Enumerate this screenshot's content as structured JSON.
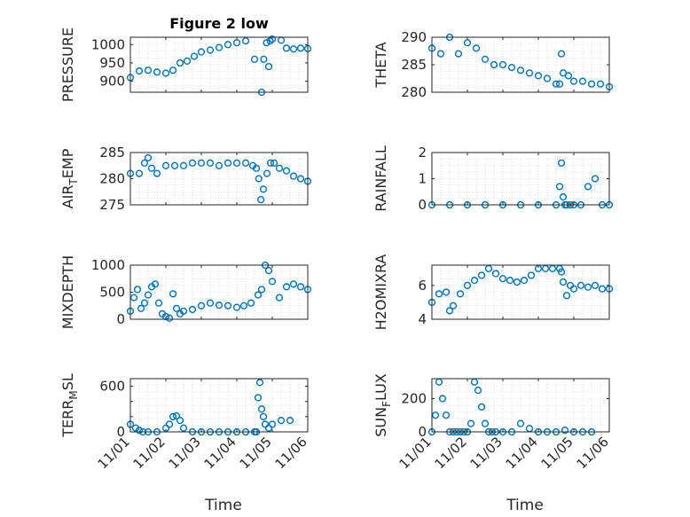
{
  "colors": {
    "marker": "#0072BD",
    "axis": "#262626",
    "grid": "#cfcfcf"
  },
  "chart_data": [
    {
      "type": "scatter",
      "title": "Figure 2 low",
      "ylabel": "PRESSURE",
      "xlabel": "",
      "xlim": [
        0,
        5
      ],
      "ylim": [
        870,
        1020
      ],
      "yticks": [
        900,
        950,
        1000
      ],
      "ytick_labels": [
        "900",
        "950",
        "1000"
      ],
      "xtick_labels": [],
      "grid": true,
      "series": [
        {
          "x": [
            0.0,
            0.25,
            0.5,
            0.75,
            1.0,
            1.2,
            1.4,
            1.6,
            1.8,
            2.0,
            2.25,
            2.5,
            2.75,
            3.0,
            3.25,
            3.5,
            3.7,
            3.76,
            3.84,
            3.9,
            3.94,
            4.0,
            4.25,
            4.4,
            4.6,
            4.8,
            5.0
          ],
          "y": [
            910,
            928,
            930,
            925,
            922,
            930,
            950,
            955,
            968,
            980,
            985,
            992,
            1000,
            1005,
            1010,
            960,
            870,
            960,
            1005,
            940,
            1010,
            1015,
            1012,
            990,
            988,
            990,
            989
          ]
        }
      ]
    },
    {
      "type": "scatter",
      "title": "",
      "ylabel": "THETA",
      "xlabel": "",
      "xlim": [
        0,
        5
      ],
      "ylim": [
        280,
        290
      ],
      "yticks": [
        280,
        285,
        290
      ],
      "ytick_labels": [
        "280",
        "285",
        "290"
      ],
      "xtick_labels": [],
      "grid": true,
      "series": [
        {
          "x": [
            0.0,
            0.25,
            0.5,
            0.75,
            1.0,
            1.25,
            1.5,
            1.75,
            2.0,
            2.25,
            2.5,
            2.75,
            3.0,
            3.25,
            3.5,
            3.6,
            3.65,
            3.7,
            3.85,
            4.0,
            4.25,
            4.5,
            4.75,
            5.0
          ],
          "y": [
            288,
            287,
            290,
            287,
            289,
            288,
            286,
            285,
            285,
            284.5,
            284,
            283.5,
            283,
            282.5,
            281.5,
            281.5,
            287,
            283.5,
            283,
            282,
            282,
            281.5,
            281.5,
            281
          ]
        }
      ]
    },
    {
      "type": "scatter",
      "title": "",
      "ylabel": "AIR_TEMP",
      "xlabel": "",
      "xlim": [
        0,
        5
      ],
      "ylim": [
        275,
        285
      ],
      "yticks": [
        275,
        280,
        285
      ],
      "ytick_labels": [
        "275",
        "280",
        "285"
      ],
      "xtick_labels": [],
      "grid": true,
      "series": [
        {
          "x": [
            0.0,
            0.25,
            0.4,
            0.5,
            0.6,
            0.75,
            1.0,
            1.25,
            1.5,
            1.75,
            2.0,
            2.25,
            2.5,
            2.75,
            3.0,
            3.25,
            3.45,
            3.55,
            3.62,
            3.68,
            3.75,
            3.85,
            3.95,
            4.05,
            4.2,
            4.4,
            4.6,
            4.8,
            5.0
          ],
          "y": [
            281,
            281,
            283,
            284,
            282,
            281,
            282.5,
            282.5,
            282.5,
            283,
            283,
            283,
            282.5,
            283,
            283,
            283,
            282.5,
            282,
            280,
            276,
            278,
            281,
            283,
            283,
            282,
            281.5,
            280.5,
            280,
            279.5
          ]
        }
      ]
    },
    {
      "type": "scatter",
      "title": "",
      "ylabel": "RAINFALL",
      "xlabel": "",
      "xlim": [
        0,
        5
      ],
      "ylim": [
        0,
        2
      ],
      "yticks": [
        0,
        1,
        2
      ],
      "ytick_labels": [
        "0",
        "1",
        "2"
      ],
      "xtick_labels": [],
      "grid": true,
      "series": [
        {
          "x": [
            0.0,
            0.5,
            1.0,
            1.5,
            2.0,
            2.5,
            3.0,
            3.5,
            3.6,
            3.65,
            3.7,
            3.75,
            3.8,
            3.9,
            4.0,
            4.2,
            4.4,
            4.6,
            4.8,
            5.0
          ],
          "y": [
            0,
            0,
            0,
            0,
            0,
            0,
            0,
            0,
            0.7,
            1.6,
            0.3,
            0,
            0,
            0,
            0,
            0,
            0.7,
            1.0,
            0,
            0
          ]
        }
      ]
    },
    {
      "type": "scatter",
      "title": "",
      "ylabel": "MIXDEPTH",
      "xlabel": "",
      "xlim": [
        0,
        5
      ],
      "ylim": [
        0,
        1000
      ],
      "yticks": [
        0,
        500,
        1000
      ],
      "ytick_labels": [
        "0",
        "500",
        "1000"
      ],
      "xtick_labels": [],
      "grid": true,
      "series": [
        {
          "x": [
            0.0,
            0.1,
            0.2,
            0.3,
            0.4,
            0.5,
            0.6,
            0.7,
            0.8,
            0.9,
            1.0,
            1.1,
            1.2,
            1.3,
            1.4,
            1.5,
            1.75,
            2.0,
            2.25,
            2.5,
            2.75,
            3.0,
            3.2,
            3.4,
            3.6,
            3.7,
            3.8,
            3.9,
            4.0,
            4.2,
            4.4,
            4.6,
            4.8,
            5.0
          ],
          "y": [
            150,
            400,
            550,
            200,
            300,
            450,
            600,
            650,
            300,
            100,
            50,
            20,
            470,
            200,
            100,
            150,
            180,
            250,
            300,
            260,
            250,
            220,
            250,
            300,
            450,
            550,
            1000,
            900,
            700,
            400,
            600,
            650,
            600,
            550
          ]
        }
      ]
    },
    {
      "type": "scatter",
      "title": "",
      "ylabel": "H2OMIXRA",
      "xlabel": "",
      "xlim": [
        0,
        5
      ],
      "ylim": [
        4,
        7.2
      ],
      "yticks": [
        4,
        6
      ],
      "ytick_labels": [
        "4",
        "6"
      ],
      "xtick_labels": [],
      "grid": true,
      "series": [
        {
          "x": [
            0.0,
            0.2,
            0.4,
            0.5,
            0.6,
            0.8,
            1.0,
            1.2,
            1.4,
            1.6,
            1.8,
            2.0,
            2.2,
            2.4,
            2.6,
            2.8,
            3.0,
            3.2,
            3.4,
            3.6,
            3.65,
            3.7,
            3.8,
            3.9,
            4.0,
            4.2,
            4.4,
            4.6,
            4.8,
            5.0
          ],
          "y": [
            5,
            5.5,
            5.6,
            4.5,
            4.8,
            5.5,
            6,
            6.3,
            6.6,
            7,
            6.7,
            6.4,
            6.3,
            6.2,
            6.3,
            6.6,
            7,
            7,
            7,
            7,
            6.8,
            6.2,
            5.4,
            6,
            5.8,
            6,
            5.9,
            6,
            5.8,
            5.8
          ]
        }
      ]
    },
    {
      "type": "scatter",
      "title": "",
      "ylabel": "TERR_MSL",
      "xlabel": "Time",
      "xlim": [
        0,
        5
      ],
      "ylim": [
        0,
        700
      ],
      "yticks": [
        0,
        200,
        400,
        600
      ],
      "ytick_labels": [
        "0",
        "",
        "",
        "600"
      ],
      "xticks": [
        0,
        1,
        2,
        3,
        4,
        5
      ],
      "xtick_labels": [
        "11/01",
        "11/02",
        "11/03",
        "11/04",
        "11/05",
        "11/06"
      ],
      "grid": true,
      "series": [
        {
          "x": [
            0.0,
            0.15,
            0.25,
            0.35,
            0.5,
            0.75,
            1.0,
            1.1,
            1.2,
            1.3,
            1.4,
            1.5,
            1.75,
            2.0,
            2.25,
            2.5,
            2.75,
            3.0,
            3.25,
            3.5,
            3.55,
            3.6,
            3.65,
            3.7,
            3.75,
            3.8,
            3.9,
            4.0,
            4.25,
            4.5
          ],
          "y": [
            100,
            50,
            20,
            0,
            0,
            0,
            50,
            100,
            200,
            210,
            150,
            50,
            0,
            0,
            0,
            0,
            0,
            0,
            0,
            0,
            0,
            450,
            650,
            300,
            200,
            100,
            50,
            100,
            150,
            150
          ]
        }
      ]
    },
    {
      "type": "scatter",
      "title": "",
      "ylabel": "SUN_FLUX",
      "xlabel": "Time",
      "xlim": [
        0,
        5
      ],
      "ylim": [
        0,
        320
      ],
      "yticks": [
        0,
        200
      ],
      "ytick_labels": [
        "0",
        "200"
      ],
      "xticks": [
        0,
        1,
        2,
        3,
        4,
        5
      ],
      "xtick_labels": [
        "11/01",
        "11/02",
        "11/03",
        "11/04",
        "11/05",
        "11/06"
      ],
      "grid": true,
      "series": [
        {
          "x": [
            0.0,
            0.1,
            0.2,
            0.3,
            0.4,
            0.5,
            0.6,
            0.7,
            0.8,
            0.9,
            1.0,
            1.1,
            1.2,
            1.3,
            1.4,
            1.5,
            1.6,
            1.7,
            1.8,
            2.0,
            2.25,
            2.5,
            2.75,
            3.0,
            3.25,
            3.5,
            3.75,
            4.0,
            4.25,
            4.5
          ],
          "y": [
            0,
            100,
            300,
            200,
            100,
            0,
            0,
            0,
            0,
            0,
            0,
            50,
            300,
            250,
            150,
            50,
            0,
            0,
            0,
            0,
            0,
            50,
            20,
            0,
            0,
            0,
            10,
            0,
            0,
            0
          ]
        }
      ]
    }
  ]
}
